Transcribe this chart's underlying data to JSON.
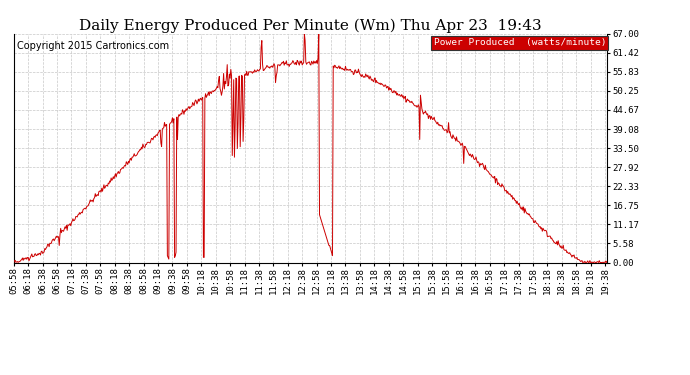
{
  "title": "Daily Energy Produced Per Minute (Wm) Thu Apr 23  19:43",
  "copyright": "Copyright 2015 Cartronics.com",
  "legend_label": "Power Produced  (watts/minute)",
  "legend_bg": "#cc0000",
  "legend_text_color": "#ffffff",
  "line_color": "#cc0000",
  "bg_color": "#ffffff",
  "grid_color": "#c8c8c8",
  "ytick_labels": [
    "67.00",
    "61.42",
    "55.83",
    "50.25",
    "44.67",
    "39.08",
    "33.50",
    "27.92",
    "22.33",
    "16.75",
    "11.17",
    "5.58",
    "0.00"
  ],
  "ytick_values": [
    67.0,
    61.42,
    55.83,
    50.25,
    44.67,
    39.08,
    33.5,
    27.92,
    22.33,
    16.75,
    11.17,
    5.58,
    0.0
  ],
  "ymin": 0.0,
  "ymax": 67.0,
  "title_fontsize": 11,
  "copyright_fontsize": 7,
  "axis_fontsize": 6.5
}
